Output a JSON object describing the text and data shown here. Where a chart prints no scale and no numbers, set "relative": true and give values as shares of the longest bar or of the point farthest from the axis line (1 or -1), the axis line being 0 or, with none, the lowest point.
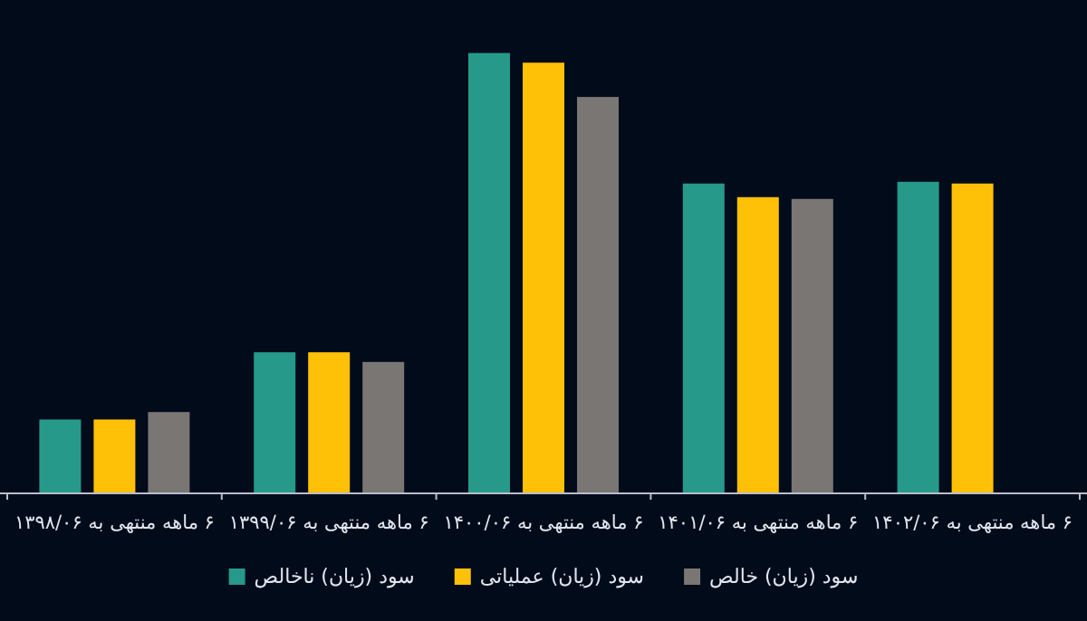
{
  "chart_data": {
    "type": "bar",
    "relative": true,
    "categories": [
      "۶ ماهه منتهی به ۱۳۹۸/۰۶",
      "۶ ماهه منتهی به ۱۳۹۹/۰۶",
      "۶ ماهه منتهی به ۱۴۰۰/۰۶",
      "۶ ماهه منتهی به ۱۴۰۱/۰۶",
      "۶ ماهه منتهی به ۱۴۰۲/۰۶"
    ],
    "series": [
      {
        "name": "سود (زیان) ناخالص",
        "color": "#26998a",
        "values": [
          0.166,
          0.319,
          1,
          0.703,
          0.707
        ]
      },
      {
        "name": "سود (زیان) عملیاتی",
        "color": "#fec107",
        "values": [
          0.166,
          0.319,
          0.978,
          0.672,
          0.703
        ]
      },
      {
        "name": "سود (زیان) خالص",
        "color": "#7a7674",
        "values": [
          0.183,
          0.297,
          0.9,
          0.668,
          null
        ]
      }
    ],
    "legend": "bottom"
  }
}
